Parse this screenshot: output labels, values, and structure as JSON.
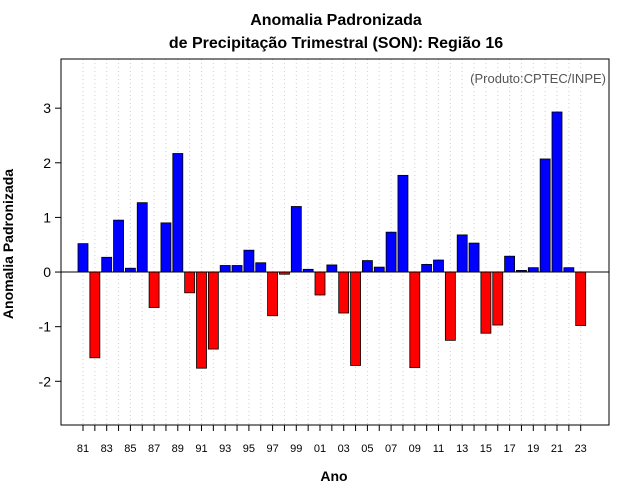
{
  "chart_data": {
    "type": "bar",
    "title_line1": "Anomalia Padronizada",
    "title_line2": "de Precipitação Trimestral (SON): Região 16",
    "xlabel": "Ano",
    "ylabel": "Anomalia Padronizada",
    "credit": "(Produto:CPTEC/INPE)",
    "ylim": [
      -2.8,
      3.9
    ],
    "yticks": [
      -2,
      -1,
      0,
      1,
      2,
      3
    ],
    "categories": [
      "81",
      "82",
      "83",
      "84",
      "85",
      "86",
      "87",
      "88",
      "89",
      "90",
      "91",
      "92",
      "93",
      "94",
      "95",
      "96",
      "97",
      "98",
      "99",
      "00",
      "01",
      "02",
      "03",
      "04",
      "05",
      "06",
      "07",
      "08",
      "09",
      "10",
      "11",
      "12",
      "13",
      "14",
      "15",
      "16",
      "17",
      "18",
      "19",
      "20",
      "21",
      "22",
      "23"
    ],
    "xtick_labels": [
      "81",
      "83",
      "85",
      "87",
      "89",
      "91",
      "93",
      "95",
      "97",
      "99",
      "01",
      "03",
      "05",
      "07",
      "09",
      "11",
      "13",
      "15",
      "17",
      "19",
      "21",
      "23"
    ],
    "values": [
      0.52,
      -1.57,
      0.27,
      0.95,
      0.07,
      1.27,
      -0.65,
      0.9,
      2.17,
      -0.38,
      -1.76,
      -1.41,
      0.12,
      0.12,
      0.4,
      0.17,
      -0.8,
      -0.04,
      1.2,
      0.05,
      -0.42,
      0.13,
      -0.75,
      -1.71,
      0.21,
      0.09,
      0.73,
      1.77,
      -1.75,
      0.14,
      0.22,
      -1.25,
      0.68,
      0.53,
      -1.12,
      -0.97,
      0.29,
      0.03,
      0.08,
      2.07,
      2.93,
      0.08,
      -0.98
    ],
    "positive_color": "#0000ff",
    "negative_color": "#ff0000",
    "grid": true
  }
}
